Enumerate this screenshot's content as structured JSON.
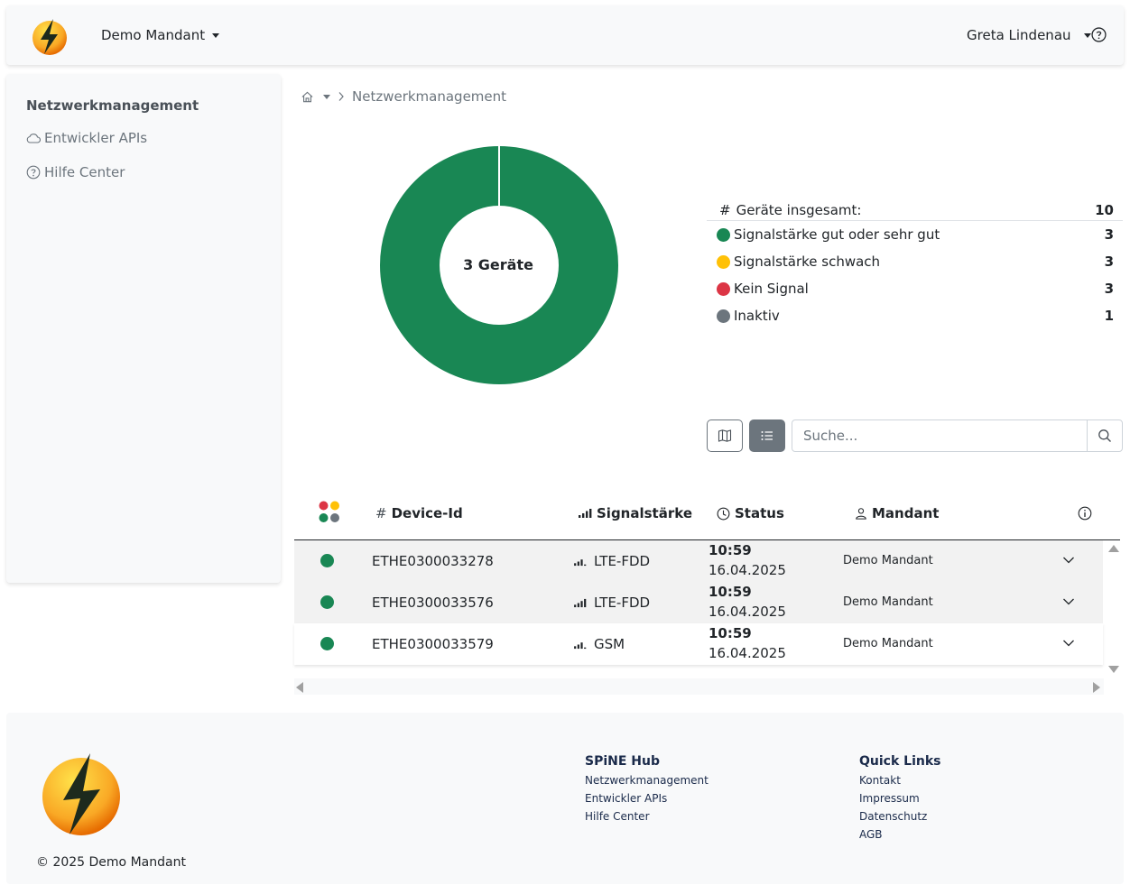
{
  "header": {
    "tenant_label": "Demo Mandant",
    "user_label": "Greta Lindenau"
  },
  "sidebar": {
    "title": "Netzwerkmanagement",
    "items": [
      {
        "label": "Entwickler APIs",
        "icon": "cloud-icon"
      },
      {
        "label": "Hilfe Center",
        "icon": "question-circle-icon"
      }
    ]
  },
  "breadcrumb": {
    "current": "Netzwerkmanagement"
  },
  "donut": {
    "center_label": "3 Geräte",
    "color": "#198754"
  },
  "legend": {
    "total_label": "Geräte insgesamt:",
    "total_value": "10",
    "rows": [
      {
        "label": "Signalstärke gut oder sehr gut",
        "value": "3",
        "color": "#198754"
      },
      {
        "label": "Signalstärke schwach",
        "value": "3",
        "color": "#ffc107"
      },
      {
        "label": "Kein Signal",
        "value": "3",
        "color": "#dc3545"
      },
      {
        "label": "Inaktiv",
        "value": "1",
        "color": "#6c757d"
      }
    ]
  },
  "search": {
    "placeholder": "Suche..."
  },
  "table": {
    "headers": {
      "device_id": "Device-Id",
      "signal": "Signalstärke",
      "status": "Status",
      "mandant": "Mandant"
    },
    "rows": [
      {
        "device_id": "ETHE0300033278",
        "signal": "LTE-FDD",
        "time": "10:59",
        "date": "16.04.2025",
        "mandant": "Demo Mandant"
      },
      {
        "device_id": "ETHE0300033576",
        "signal": "LTE-FDD",
        "time": "10:59",
        "date": "16.04.2025",
        "mandant": "Demo Mandant"
      },
      {
        "device_id": "ETHE0300033579",
        "signal": "GSM",
        "time": "10:59",
        "date": "16.04.2025",
        "mandant": "Demo Mandant"
      }
    ]
  },
  "footer": {
    "copyright": "© 2025 Demo Mandant",
    "columns": [
      {
        "title": "SPiNE Hub",
        "links": [
          "Netzwerkmanagement",
          "Entwickler APIs",
          "Hilfe Center"
        ]
      },
      {
        "title": "Quick Links",
        "links": [
          "Kontakt",
          "Impressum",
          "Datenschutz",
          "AGB"
        ]
      }
    ]
  }
}
